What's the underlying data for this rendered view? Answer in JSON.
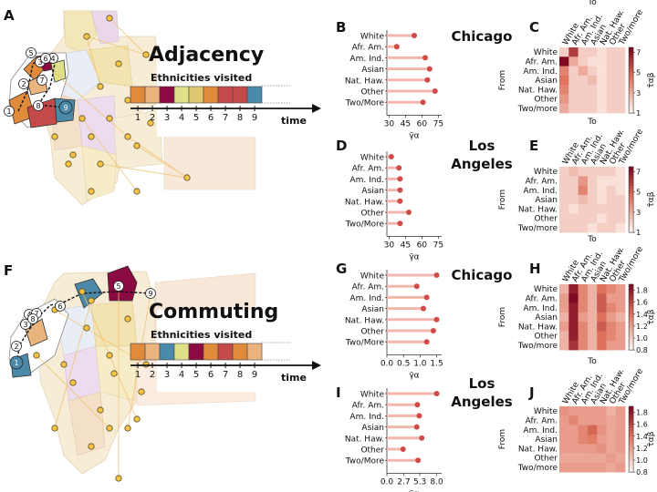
{
  "panel_letters": [
    "A",
    "B",
    "C",
    "D",
    "E",
    "F",
    "G",
    "H",
    "I",
    "J"
  ],
  "chart_data": [
    {
      "id": "B",
      "type": "lollipop",
      "city": "Chicago",
      "categories": [
        "White",
        "Afr. Am.",
        "Am. Ind.",
        "Asian",
        "Nat. Haw.",
        "Other",
        "Two/More"
      ],
      "values": [
        53,
        37,
        63,
        67,
        65,
        72,
        61
      ],
      "xticks": [
        "30",
        "45",
        "60",
        "75"
      ],
      "xlim": [
        28,
        78
      ],
      "xlabel": "γ̄α"
    },
    {
      "id": "D",
      "type": "lollipop",
      "city": "Los Angeles",
      "categories": [
        "White",
        "Afr. Am.",
        "Am. Ind.",
        "Asian",
        "Nat. Haw.",
        "Other",
        "Two/More"
      ],
      "values": [
        32,
        39,
        40,
        40,
        40,
        48,
        40
      ],
      "xticks": [
        "30",
        "45",
        "60",
        "75"
      ],
      "xlim": [
        28,
        78
      ],
      "xlabel": "γ̄α"
    },
    {
      "id": "G",
      "type": "lollipop",
      "city": "Chicago",
      "categories": [
        "White",
        "Afr. Am.",
        "Am. Ind.",
        "Asian",
        "Nat. Haw.",
        "Other",
        "Two/More"
      ],
      "values": [
        1.5,
        0.9,
        1.2,
        1.1,
        1.5,
        1.4,
        1.2
      ],
      "xticks": [
        "0.0",
        "0.5",
        "1.0",
        "1.5"
      ],
      "xlim": [
        0,
        1.65
      ],
      "xlabel": "γ̄α"
    },
    {
      "id": "I",
      "type": "lollipop",
      "city": "Los Angeles",
      "categories": [
        "White",
        "Afr. Am.",
        "Am. Ind.",
        "Asian",
        "Nat. Haw.",
        "Other",
        "Two/More"
      ],
      "values": [
        8.0,
        4.9,
        5.2,
        4.8,
        5.6,
        2.6,
        5.0
      ],
      "xticks": [
        "0.0",
        "2.7",
        "5.3",
        "8.0"
      ],
      "xlim": [
        0,
        8.8
      ],
      "xlabel": "γ̄α"
    },
    {
      "id": "C",
      "type": "heatmap",
      "xlabel": "To",
      "ylabel": "From",
      "rows": [
        "White",
        "Afr. Am.",
        "Am. Ind.",
        "Asian",
        "Nat. Haw.",
        "Other",
        "Two/more"
      ],
      "cols": [
        "White",
        "Afr. Am.",
        "Am. Ind.",
        "Asian",
        "Nat. Haw.",
        "Other",
        "Two/more"
      ],
      "colorbar_ticks": [
        "7",
        "5",
        "3",
        "1"
      ],
      "colorbar_label": "τ̄αβ",
      "vmin": 1,
      "vmax": 7.5,
      "values": [
        [
          2,
          6,
          2,
          2,
          1.5,
          2,
          2
        ],
        [
          7.5,
          3,
          2,
          1.5,
          1.5,
          2,
          2
        ],
        [
          4,
          2,
          3,
          2,
          1.5,
          2,
          2
        ],
        [
          4.5,
          2,
          2,
          2.5,
          1.5,
          2,
          2
        ],
        [
          4,
          2,
          2,
          2,
          1.5,
          2,
          2
        ],
        [
          3.5,
          2,
          2,
          2,
          1.5,
          2,
          2
        ],
        [
          3,
          2,
          2,
          2,
          1.5,
          2,
          2
        ]
      ]
    },
    {
      "id": "E",
      "type": "heatmap",
      "xlabel": "To",
      "ylabel": "From",
      "rows": [
        "White",
        "Afr. Am.",
        "Am. Ind.",
        "Asian",
        "Nat. Haw.",
        "Other",
        "Two/more"
      ],
      "cols": [
        "White",
        "Afr. Am.",
        "Am. Ind.",
        "Asian",
        "Nat. Haw.",
        "Other",
        "Two/more"
      ],
      "colorbar_ticks": [
        "7",
        "5",
        "3",
        "1"
      ],
      "colorbar_label": "τ̄αβ",
      "vmin": 1,
      "vmax": 7.5,
      "values": [
        [
          2,
          2.5,
          2,
          2,
          2,
          2,
          1.5
        ],
        [
          2,
          2,
          3.5,
          2,
          1.5,
          1.5,
          1.5
        ],
        [
          2,
          2,
          4,
          2,
          1.5,
          2,
          1.5
        ],
        [
          2,
          2,
          2.5,
          2,
          1.5,
          2,
          2
        ],
        [
          2,
          1.5,
          2,
          2,
          2,
          2,
          2
        ],
        [
          2,
          2,
          2,
          2,
          1.5,
          2,
          2
        ],
        [
          2,
          2,
          2,
          1.5,
          2,
          2,
          1.5
        ]
      ]
    },
    {
      "id": "H",
      "type": "heatmap",
      "xlabel": "To",
      "ylabel": "From",
      "rows": [
        "White",
        "Afr. Am.",
        "Am. Ind.",
        "Asian",
        "Nat. Haw.",
        "Other",
        "Two/more"
      ],
      "cols": [
        "White",
        "Afr. Am.",
        "Am. Ind.",
        "Asian",
        "Nat. Haw.",
        "Other",
        "Two/more"
      ],
      "colorbar_ticks": [
        "1.8",
        "1.6",
        "1.4",
        "1.2",
        "1.0",
        "0.8"
      ],
      "colorbar_label": "τ̄αβ",
      "vmin": 0.8,
      "vmax": 1.9,
      "values": [
        [
          1.1,
          1.8,
          1.3,
          1.1,
          1.4,
          1.3,
          1.2
        ],
        [
          1.2,
          1.9,
          1.3,
          1.1,
          1.5,
          1.2,
          1.2
        ],
        [
          1.2,
          1.8,
          1.3,
          1.1,
          1.5,
          1.3,
          1.2
        ],
        [
          1.1,
          1.8,
          1.2,
          1.1,
          1.4,
          1.2,
          1.1
        ],
        [
          1.2,
          1.8,
          1.3,
          1.1,
          1.5,
          1.3,
          1.2
        ],
        [
          1.1,
          1.8,
          1.3,
          1.1,
          1.4,
          1.3,
          1.2
        ],
        [
          1.1,
          1.7,
          1.3,
          1.1,
          1.4,
          1.2,
          1.2
        ]
      ]
    },
    {
      "id": "J",
      "type": "heatmap",
      "xlabel": "To",
      "ylabel": "From",
      "rows": [
        "White",
        "Afr. Am.",
        "Am. Ind.",
        "Asian",
        "Nat. Haw.",
        "Other",
        "Two/more"
      ],
      "cols": [
        "White",
        "Afr. Am.",
        "Am. Ind.",
        "Asian",
        "Nat. Haw.",
        "Other",
        "Two/more"
      ],
      "colorbar_ticks": [
        "1.8",
        "1.6",
        "1.4",
        "1.2",
        "1.0",
        "0.8"
      ],
      "colorbar_label": "τ̄αβ",
      "vmin": 0.8,
      "vmax": 1.9,
      "values": [
        [
          1.25,
          1.2,
          1.2,
          1.2,
          1.2,
          1.1,
          1.2
        ],
        [
          1.2,
          1.3,
          1.2,
          1.2,
          1.2,
          1.15,
          1.2
        ],
        [
          1.2,
          1.2,
          1.3,
          1.45,
          1.25,
          1.15,
          1.2
        ],
        [
          1.2,
          1.2,
          1.3,
          1.35,
          1.2,
          1.15,
          1.2
        ],
        [
          1.2,
          1.2,
          1.2,
          1.2,
          1.25,
          1.15,
          1.2
        ],
        [
          1.15,
          1.15,
          1.15,
          1.15,
          1.15,
          1.2,
          1.15
        ],
        [
          1.2,
          1.2,
          1.2,
          1.2,
          1.2,
          1.15,
          1.2
        ]
      ]
    }
  ],
  "city_labels": [
    {
      "id": "B",
      "text": "Chicago"
    },
    {
      "id": "D",
      "lines": [
        "Los",
        "Angeles"
      ]
    },
    {
      "id": "G",
      "text": "Chicago"
    },
    {
      "id": "I",
      "lines": [
        "Los",
        "Angeles"
      ]
    }
  ],
  "schematics": [
    {
      "id": "A",
      "title": "Adjacency",
      "subtitle": "Ethnicities visited",
      "time_label": "time",
      "steps": [
        "1",
        "2",
        "3",
        "4",
        "5",
        "6",
        "7",
        "8",
        "9"
      ],
      "colors": [
        "#e08a3c",
        "#e9b47d",
        "#8b0a41",
        "#dfe08a",
        "#e0c870",
        "#e08a3c",
        "#c44a4a",
        "#c44a4a",
        "#4a8aa8"
      ],
      "route_numbers": [
        "1",
        "2",
        "3",
        "4",
        "5",
        "6",
        "7",
        "8",
        "9"
      ]
    },
    {
      "id": "F",
      "title": "Commuting",
      "subtitle": "Ethnicities visited",
      "time_label": "time",
      "steps": [
        "1",
        "2",
        "3",
        "4",
        "5",
        "6",
        "7",
        "8",
        "9"
      ],
      "colors": [
        "#e08a3c",
        "#e9b47d",
        "#4a8aa8",
        "#dfe08a",
        "#8b0a41",
        "#e08a3c",
        "#c44a4a",
        "#e08a3c",
        "#e9b47d"
      ],
      "route_numbers": [
        "1",
        "2",
        "3",
        "4",
        "5",
        "6",
        "7",
        "8",
        "9"
      ]
    }
  ],
  "colors": {
    "stem": "#f1b7ad",
    "dot": "#d04a48",
    "heat_low": "#fdf3ee",
    "heat_high": "#7d0a22"
  }
}
